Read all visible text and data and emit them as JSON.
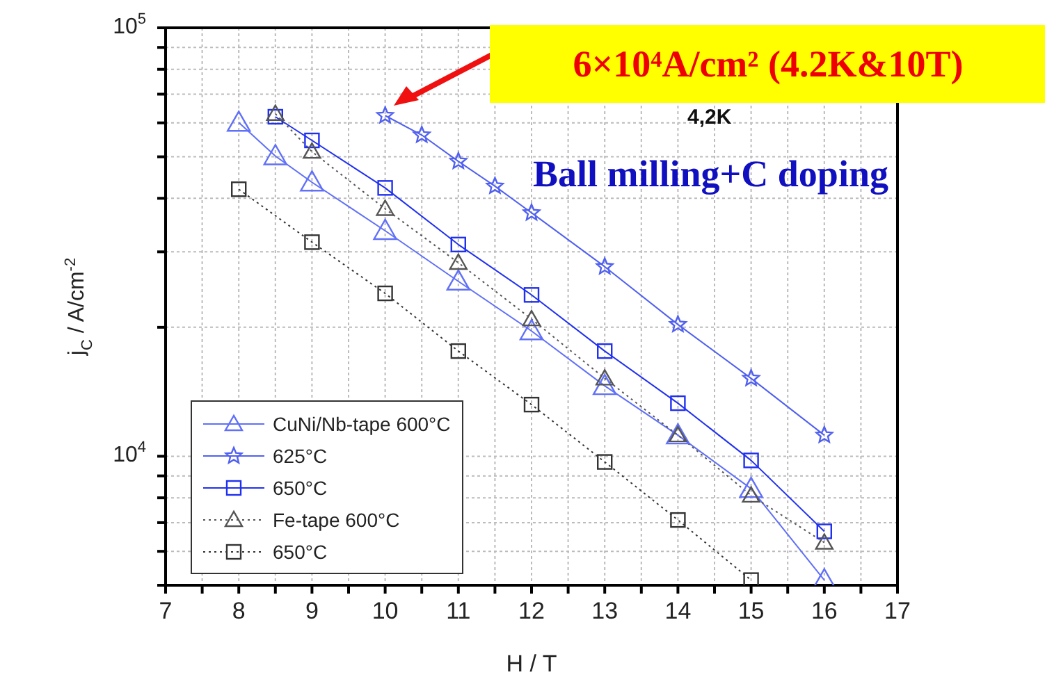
{
  "chart_data": {
    "type": "line",
    "xlabel": "H / T",
    "ylabel": "j$_{C}$ / A/cm$^{-2}$",
    "annotations": [
      "6×10⁴A/cm² (4.2K&10T)",
      "4,2K",
      "Ball milling+C doping"
    ],
    "log": "y",
    "grid": true,
    "legend": "bottom left",
    "xlim": [
      7,
      17
    ],
    "xticks": [
      7,
      {
        "value": 7.5,
        "label": null
      },
      8,
      {
        "value": 8.5,
        "label": null
      },
      9,
      {
        "value": 9.5,
        "label": null
      },
      10,
      {
        "value": 10.5,
        "label": null
      },
      11,
      {
        "value": 11.5,
        "label": null
      },
      12,
      {
        "value": 12.5,
        "label": null
      },
      13,
      {
        "value": 13.5,
        "label": null
      },
      14,
      {
        "value": 14.5,
        "label": null
      },
      15,
      {
        "value": 15.5,
        "label": null
      },
      16,
      {
        "value": 16.5,
        "label": null
      },
      17
    ],
    "ylim": [
      5000,
      100000
    ],
    "yticks": [
      {
        "value": 5000,
        "label": null
      },
      {
        "value": 6000,
        "label": null
      },
      {
        "value": 7000,
        "label": null
      },
      {
        "value": 8000,
        "label": null
      },
      {
        "value": 9000,
        "label": null
      },
      {
        "value": 10000,
        "label": "10$^{4}$"
      },
      {
        "value": 20000,
        "label": null
      },
      {
        "value": 30000,
        "label": null
      },
      {
        "value": 40000,
        "label": null
      },
      {
        "value": 50000,
        "label": null
      },
      {
        "value": 60000,
        "label": null
      },
      {
        "value": 70000,
        "label": null
      },
      {
        "value": 80000,
        "label": null
      },
      {
        "value": 90000,
        "label": null
      },
      {
        "value": 100000,
        "label": "10$^{5}$"
      }
    ],
    "series": [
      {
        "name": "CuNi/Nb-tape 600°C",
        "color": "#6070f8",
        "marker": "triangle",
        "line_style": "solid",
        "x": [
          8,
          8.5,
          9,
          10,
          11,
          12,
          13,
          14,
          15,
          16
        ],
        "values": [
          60100,
          50200,
          43600,
          33600,
          25600,
          19600,
          14600,
          11200,
          8400,
          5140
        ]
      },
      {
        "name": "625°C",
        "color": "#5060f0",
        "marker": "star",
        "line_style": "solid",
        "x": [
          10,
          10.5,
          11,
          11.5,
          12,
          13,
          14,
          15,
          16
        ],
        "values": [
          62400,
          56200,
          48800,
          42700,
          37000,
          27700,
          20300,
          15200,
          11200
        ]
      },
      {
        "name": "650°C",
        "color": "#2030f0",
        "marker": "square",
        "line_style": "solid",
        "x": [
          8.5,
          9,
          10,
          11,
          12,
          13,
          14,
          15,
          16
        ],
        "values": [
          62000,
          54600,
          42300,
          31200,
          23800,
          17600,
          13300,
          9780,
          6680
        ]
      },
      {
        "name": "Fe-tape 600°C",
        "color": "#555555",
        "marker": "triangle",
        "line_style": "dotted",
        "x": [
          8.5,
          9,
          10,
          11,
          12,
          13,
          14,
          15,
          16
        ],
        "values": [
          63000,
          51400,
          37800,
          28300,
          20900,
          15200,
          11200,
          8100,
          6290
        ]
      },
      {
        "name": "650°C",
        "color": "#333333",
        "marker": "square",
        "line_style": "dotted",
        "x": [
          8,
          9,
          10,
          11,
          12,
          13,
          14,
          15
        ],
        "values": [
          42000,
          31600,
          24000,
          17600,
          13200,
          9700,
          7100,
          5140
        ]
      }
    ]
  }
}
